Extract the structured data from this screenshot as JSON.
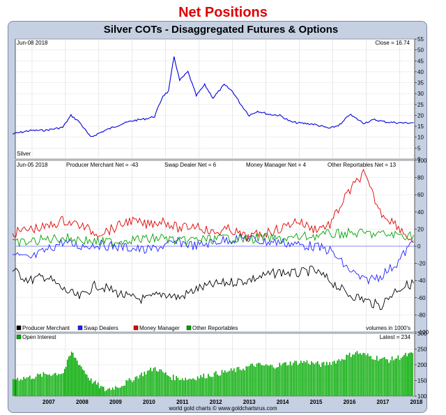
{
  "header": {
    "title": "Net Positions",
    "chart_title": "Silver COTs - Disaggregated Futures & Options",
    "credit": "world gold charts © www.goldchartsrus.com"
  },
  "colors": {
    "price": "#0000dd",
    "producer": "#000000",
    "swap": "#2020ff",
    "money": "#e00000",
    "other": "#00a000",
    "oi": "#00aa00",
    "zero_line": "#6666ff"
  },
  "chart_data": [
    {
      "type": "line",
      "panel": "price",
      "date_label": "Jun-08 2018",
      "readout": "Close = 16.74",
      "series_label": "Silver",
      "ylim": [
        0,
        55
      ],
      "yticks": [
        0,
        5,
        10,
        15,
        20,
        25,
        30,
        35,
        40,
        45,
        50,
        55
      ],
      "x": [
        "2006-06",
        "2006-12",
        "2007-06",
        "2007-12",
        "2008-03",
        "2008-06",
        "2008-10",
        "2009-03",
        "2009-09",
        "2010-01",
        "2010-06",
        "2010-09",
        "2010-12",
        "2011-02",
        "2011-04",
        "2011-06",
        "2011-09",
        "2011-12",
        "2012-03",
        "2012-06",
        "2012-10",
        "2013-01",
        "2013-04",
        "2013-07",
        "2013-10",
        "2014-02",
        "2014-06",
        "2014-10",
        "2015-01",
        "2015-06",
        "2015-12",
        "2016-04",
        "2016-07",
        "2016-12",
        "2017-04",
        "2017-08",
        "2017-12",
        "2018-03",
        "2018-06"
      ],
      "values": [
        11.5,
        13,
        13.2,
        14.5,
        20,
        17,
        10,
        13,
        16,
        17.5,
        18.5,
        19.5,
        29,
        31,
        47,
        36,
        40,
        29,
        34,
        28,
        34,
        31,
        25,
        20,
        22,
        20.5,
        20,
        17,
        16.5,
        16,
        14,
        16,
        20.5,
        16.5,
        18,
        17,
        16.7,
        16.5,
        16.74
      ]
    },
    {
      "type": "line",
      "panel": "net-positions",
      "date_label": "Jun-05 2018",
      "readouts": {
        "producer": "Producer Merchant Net = -43",
        "swap": "Swap Dealer Net = 6",
        "money": "Money Manager Net = 4",
        "other": "Other Reportables Net = 13"
      },
      "units": "volumes in 1000's",
      "ylim": [
        -100,
        100
      ],
      "yticks": [
        -100,
        -80,
        -60,
        -40,
        -20,
        0,
        20,
        40,
        60,
        80,
        100
      ],
      "x": [
        "2006-06",
        "2006-12",
        "2007-06",
        "2007-12",
        "2008-06",
        "2008-12",
        "2009-06",
        "2009-12",
        "2010-06",
        "2010-12",
        "2011-06",
        "2011-12",
        "2012-06",
        "2012-12",
        "2013-06",
        "2013-12",
        "2014-06",
        "2014-12",
        "2015-06",
        "2015-12",
        "2016-06",
        "2016-12",
        "2017-06",
        "2017-12",
        "2018-06"
      ],
      "series": [
        {
          "name": "Producer Merchant",
          "key": "producer",
          "values": [
            -28,
            -40,
            -35,
            -50,
            -60,
            -45,
            -52,
            -60,
            -62,
            -55,
            -60,
            -50,
            -45,
            -42,
            -40,
            -35,
            -30,
            -32,
            -28,
            -40,
            -55,
            -62,
            -70,
            -50,
            -43
          ]
        },
        {
          "name": "Swap Dealers",
          "key": "swap",
          "values": [
            -10,
            -15,
            -5,
            5,
            0,
            2,
            0,
            -2,
            -5,
            0,
            5,
            0,
            5,
            8,
            10,
            5,
            5,
            2,
            0,
            -5,
            -25,
            -40,
            -35,
            -20,
            6
          ]
        },
        {
          "name": "Money Manager",
          "key": "money",
          "values": [
            15,
            20,
            22,
            30,
            25,
            15,
            20,
            30,
            25,
            30,
            20,
            25,
            15,
            20,
            10,
            15,
            20,
            30,
            20,
            25,
            60,
            85,
            40,
            25,
            4
          ]
        },
        {
          "name": "Other Reportables",
          "key": "other",
          "values": [
            3,
            5,
            8,
            10,
            8,
            5,
            5,
            8,
            8,
            10,
            5,
            8,
            8,
            10,
            8,
            10,
            8,
            10,
            12,
            14,
            15,
            15,
            14,
            13,
            13
          ]
        }
      ]
    },
    {
      "type": "bar",
      "panel": "open-interest",
      "series_label": "Open Interest",
      "readout": "Latest = 234",
      "ylim": [
        100,
        300
      ],
      "yticks": [
        100,
        150,
        200,
        250,
        300
      ],
      "x": [
        "2006-06",
        "2006-12",
        "2007-06",
        "2007-12",
        "2008-03",
        "2008-06",
        "2008-10",
        "2009-03",
        "2009-09",
        "2010-03",
        "2010-09",
        "2011-03",
        "2011-09",
        "2012-03",
        "2012-09",
        "2013-03",
        "2013-09",
        "2014-03",
        "2014-09",
        "2015-03",
        "2015-09",
        "2016-03",
        "2016-09",
        "2017-03",
        "2017-09",
        "2018-03",
        "2018-06"
      ],
      "values": [
        155,
        160,
        170,
        175,
        240,
        200,
        150,
        120,
        135,
        165,
        190,
        160,
        155,
        165,
        175,
        185,
        200,
        195,
        205,
        210,
        200,
        215,
        240,
        225,
        215,
        230,
        234
      ]
    }
  ],
  "x_axis": {
    "ticks": [
      "2007",
      "2008",
      "2009",
      "2010",
      "2011",
      "2012",
      "2013",
      "2014",
      "2015",
      "2016",
      "2017",
      "2018"
    ],
    "legend": [
      "Producer Merchant",
      "Swap Dealers",
      "Money Manager",
      "Other Reportables"
    ]
  }
}
